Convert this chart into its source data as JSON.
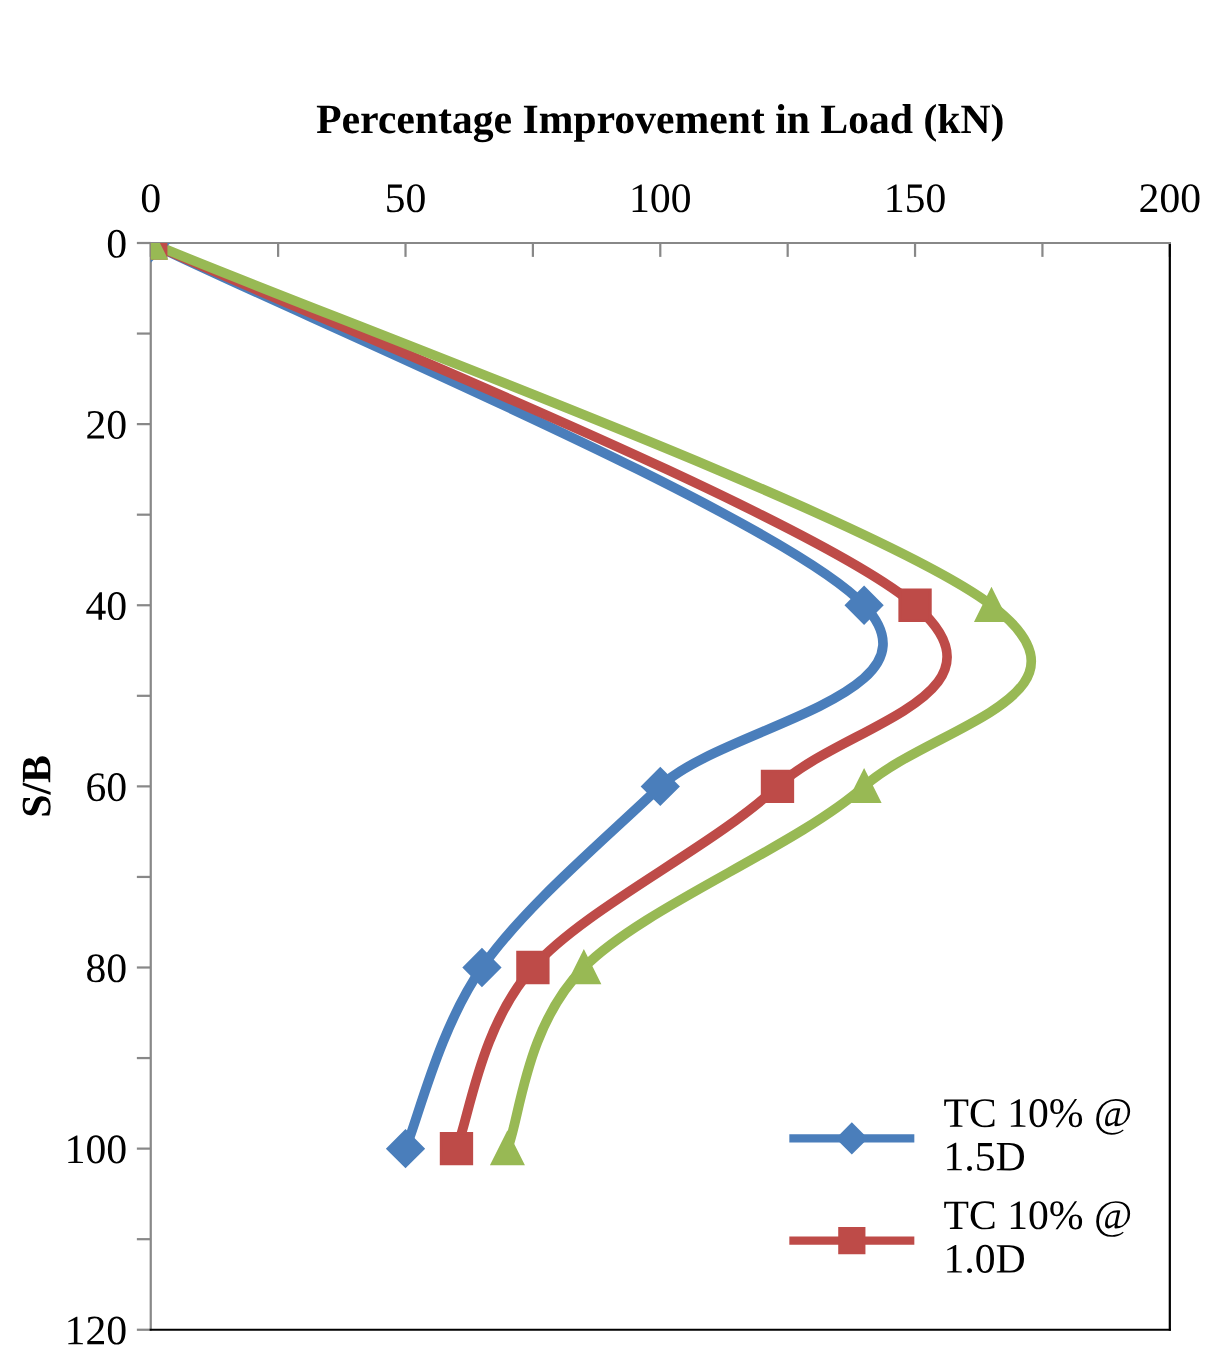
{
  "chart_data": {
    "type": "line",
    "xlabel": "Percentage Improvement in Load (kN)",
    "ylabel": "S/B",
    "xlim": [
      0,
      200
    ],
    "xticks": [
      0,
      {
        "value": 25,
        "label": null
      },
      50,
      {
        "value": 75,
        "label": null
      },
      100,
      {
        "value": 125,
        "label": null
      },
      150,
      {
        "value": 175,
        "label": null
      },
      200
    ],
    "ylim": [
      120,
      0
    ],
    "yticks": [
      0,
      {
        "value": 10,
        "label": null
      },
      20,
      {
        "value": 30,
        "label": null
      },
      40,
      {
        "value": 50,
        "label": null
      },
      60,
      {
        "value": 70,
        "label": null
      },
      80,
      {
        "value": 90,
        "label": null
      },
      100,
      {
        "value": 110,
        "label": null
      },
      120
    ],
    "grid": false,
    "legend": "bottom right",
    "series": [
      {
        "name": "TC 10% @ 1.5D",
        "color": "#4a7ebb",
        "marker": "diamond",
        "x": [
          0,
          140,
          100,
          65,
          50
        ],
        "values": [
          0,
          40,
          60,
          80,
          100
        ]
      },
      {
        "name": "TC 10% @ 1.0D",
        "color": "#be4b48",
        "marker": "square",
        "x": [
          0,
          150,
          123,
          75,
          60
        ],
        "values": [
          0,
          40,
          60,
          80,
          100
        ]
      },
      {
        "color": "#98b954",
        "marker": "triangle",
        "x": [
          0,
          165,
          140,
          85,
          70
        ],
        "values": [
          0,
          40,
          60,
          80,
          100
        ]
      }
    ]
  }
}
